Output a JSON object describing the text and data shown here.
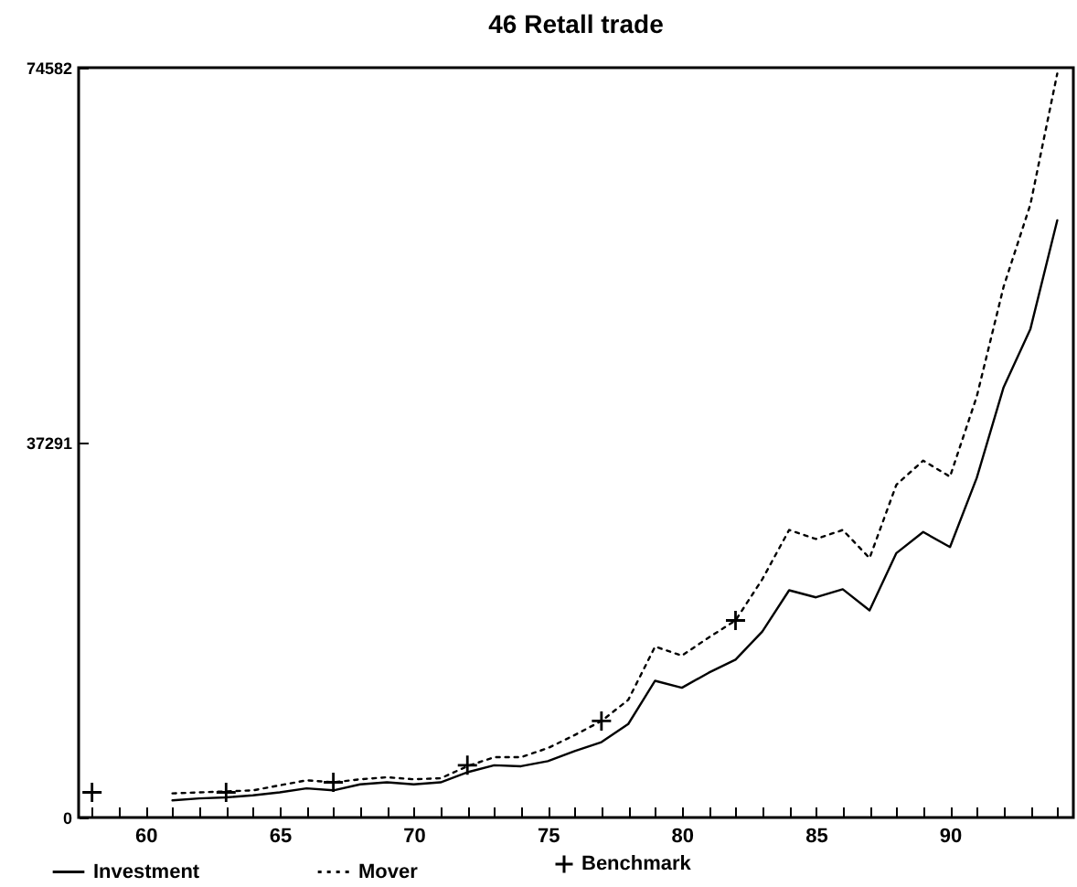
{
  "chart_data": {
    "type": "line",
    "title": "46 Retall trade",
    "x": [
      61,
      62,
      63,
      64,
      65,
      66,
      67,
      68,
      69,
      70,
      71,
      72,
      73,
      74,
      75,
      76,
      77,
      78,
      79,
      80,
      81,
      82,
      83,
      84,
      85,
      86,
      87,
      88,
      89,
      90,
      91,
      92,
      93,
      94
    ],
    "series": [
      {
        "name": "Investment",
        "color": "#000000",
        "line_style": "solid",
        "values": [
          1700,
          1900,
          2000,
          2200,
          2500,
          2900,
          2700,
          3300,
          3500,
          3300,
          3500,
          4500,
          5200,
          5100,
          5600,
          6600,
          7500,
          9300,
          13600,
          12900,
          14400,
          15700,
          18500,
          22600,
          21900,
          22700,
          20600,
          26300,
          28400,
          26900,
          33800,
          42800,
          48600,
          59400
        ]
      },
      {
        "name": "Mover",
        "color": "#000000",
        "line_style": "dotted",
        "values": [
          2400,
          2500,
          2600,
          2700,
          3200,
          3700,
          3500,
          3800,
          4000,
          3800,
          3900,
          5100,
          6000,
          6000,
          6900,
          8200,
          9600,
          11700,
          17000,
          16100,
          17900,
          19600,
          23700,
          28600,
          27700,
          28600,
          25800,
          33100,
          35500,
          33900,
          41900,
          52800,
          61000,
          74000
        ]
      },
      {
        "name": "Benchmark",
        "type": "scatter",
        "marker": "cross",
        "color": "#000000",
        "x": [
          58,
          63,
          67,
          72,
          77,
          82
        ],
        "values": [
          2500,
          2500,
          3500,
          5200,
          9600,
          19600
        ]
      }
    ],
    "xlim": [
      57.5,
      94.6
    ],
    "xticks": [
      {
        "value": 58,
        "label": null
      },
      {
        "value": 59,
        "label": null
      },
      60,
      {
        "value": 61,
        "label": null
      },
      {
        "value": 62,
        "label": null
      },
      {
        "value": 63,
        "label": null
      },
      {
        "value": 64,
        "label": null
      },
      65,
      {
        "value": 66,
        "label": null
      },
      {
        "value": 67,
        "label": null
      },
      {
        "value": 68,
        "label": null
      },
      {
        "value": 69,
        "label": null
      },
      70,
      {
        "value": 71,
        "label": null
      },
      {
        "value": 72,
        "label": null
      },
      {
        "value": 73,
        "label": null
      },
      {
        "value": 74,
        "label": null
      },
      75,
      {
        "value": 76,
        "label": null
      },
      {
        "value": 77,
        "label": null
      },
      {
        "value": 78,
        "label": null
      },
      {
        "value": 79,
        "label": null
      },
      80,
      {
        "value": 81,
        "label": null
      },
      {
        "value": 82,
        "label": null
      },
      {
        "value": 83,
        "label": null
      },
      {
        "value": 84,
        "label": null
      },
      85,
      {
        "value": 86,
        "label": null
      },
      {
        "value": 87,
        "label": null
      },
      {
        "value": 88,
        "label": null
      },
      {
        "value": 89,
        "label": null
      },
      90,
      {
        "value": 91,
        "label": null
      },
      {
        "value": 92,
        "label": null
      },
      {
        "value": 93,
        "label": null
      },
      {
        "value": 94,
        "label": null
      }
    ],
    "ylim": [
      0,
      74582
    ],
    "yticks": [
      0,
      37291,
      74582
    ],
    "grid": false,
    "legend": "bottom"
  }
}
